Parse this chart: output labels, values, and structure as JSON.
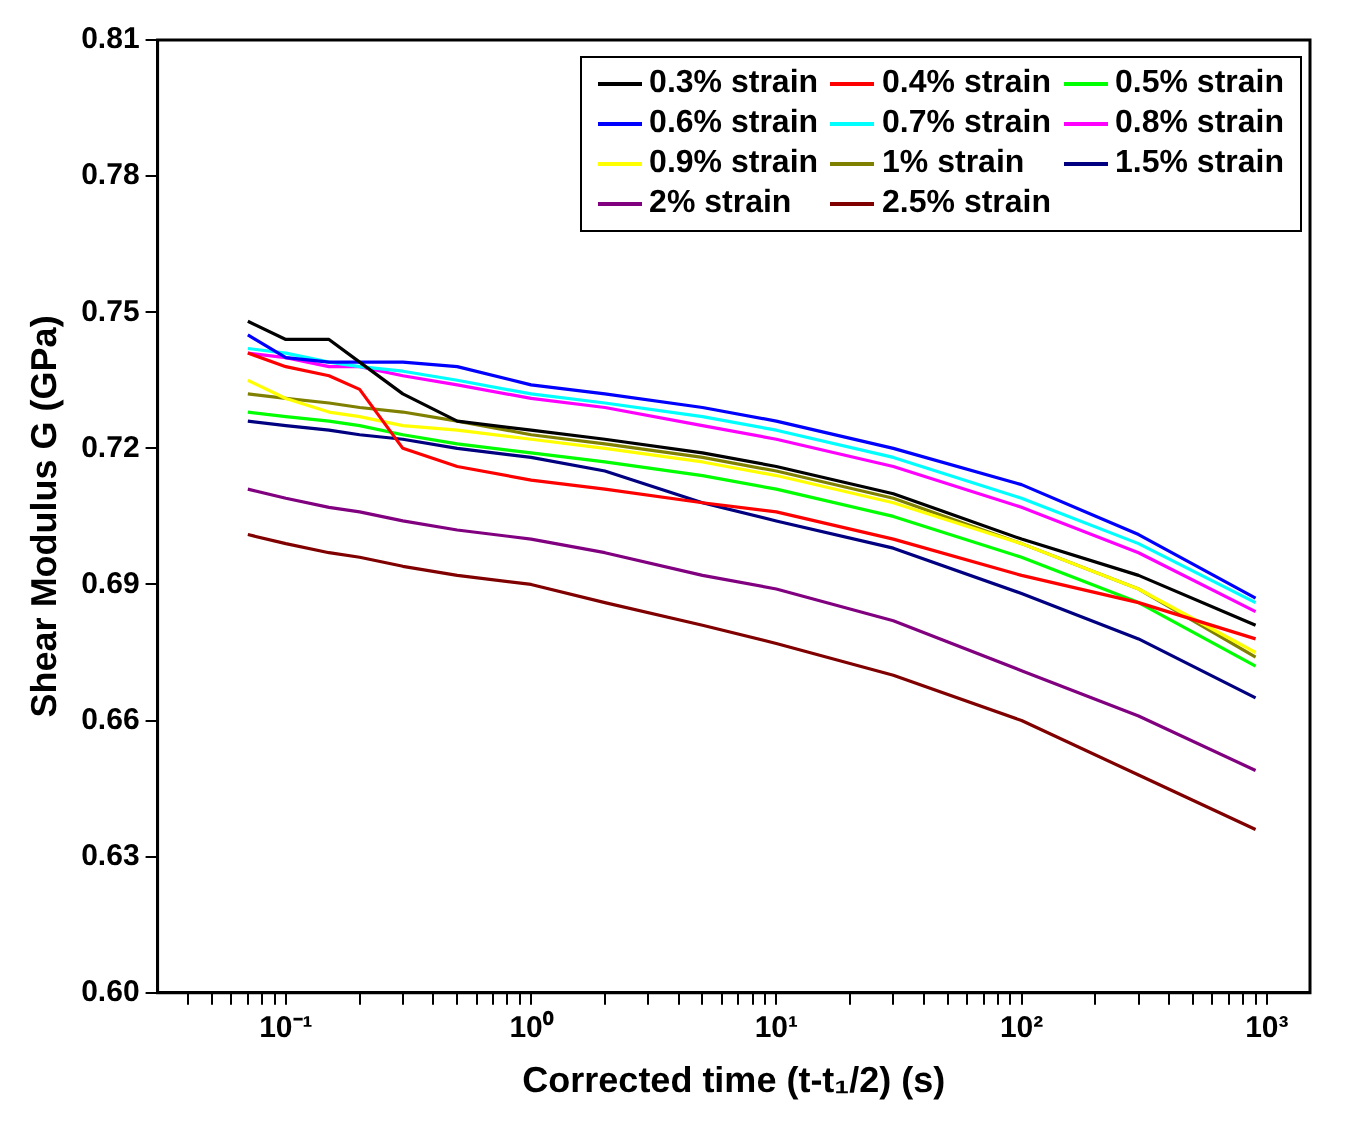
{
  "chart_data": {
    "type": "line",
    "xlabel": "Corrected time (t-t₁/2) (s)",
    "ylabel": "Shear Modulus G (GPa)",
    "log": "x",
    "grid": false,
    "legend": "top right",
    "marker": "none",
    "line_style": "solid",
    "xlim": [
      0.03,
      1500
    ],
    "xticks": [
      {
        "value": 0.04,
        "label": null
      },
      {
        "value": 0.05,
        "label": null
      },
      {
        "value": 0.06,
        "label": null
      },
      {
        "value": 0.07,
        "label": null
      },
      {
        "value": 0.08,
        "label": null
      },
      {
        "value": 0.09,
        "label": null
      },
      {
        "value": 0.1,
        "label": "10⁻¹"
      },
      {
        "value": 0.2,
        "label": null
      },
      {
        "value": 0.3,
        "label": null
      },
      {
        "value": 0.4,
        "label": null
      },
      {
        "value": 0.5,
        "label": null
      },
      {
        "value": 0.6,
        "label": null
      },
      {
        "value": 0.7,
        "label": null
      },
      {
        "value": 0.8,
        "label": null
      },
      {
        "value": 0.9,
        "label": null
      },
      {
        "value": 1,
        "label": "10⁰"
      },
      {
        "value": 2,
        "label": null
      },
      {
        "value": 3,
        "label": null
      },
      {
        "value": 4,
        "label": null
      },
      {
        "value": 5,
        "label": null
      },
      {
        "value": 6,
        "label": null
      },
      {
        "value": 7,
        "label": null
      },
      {
        "value": 8,
        "label": null
      },
      {
        "value": 9,
        "label": null
      },
      {
        "value": 10,
        "label": "10¹"
      },
      {
        "value": 20,
        "label": null
      },
      {
        "value": 30,
        "label": null
      },
      {
        "value": 40,
        "label": null
      },
      {
        "value": 50,
        "label": null
      },
      {
        "value": 60,
        "label": null
      },
      {
        "value": 70,
        "label": null
      },
      {
        "value": 80,
        "label": null
      },
      {
        "value": 90,
        "label": null
      },
      {
        "value": 100,
        "label": "10²"
      },
      {
        "value": 200,
        "label": null
      },
      {
        "value": 300,
        "label": null
      },
      {
        "value": 400,
        "label": null
      },
      {
        "value": 500,
        "label": null
      },
      {
        "value": 600,
        "label": null
      },
      {
        "value": 700,
        "label": null
      },
      {
        "value": 800,
        "label": null
      },
      {
        "value": 900,
        "label": null
      },
      {
        "value": 1000,
        "label": "10³"
      }
    ],
    "ylim": [
      0.6,
      0.81
    ],
    "yticks": [
      {
        "value": 0.6,
        "label": "0.60"
      },
      0.63,
      0.66,
      0.69,
      0.72,
      0.75,
      0.78,
      0.81
    ],
    "x": [
      0.07,
      0.1,
      0.15,
      0.2,
      0.3,
      0.5,
      1,
      2,
      5,
      10,
      30,
      100,
      300,
      900
    ],
    "series": [
      {
        "name": "0.3% strain",
        "color": "#000000",
        "values": [
          0.748,
          0.744,
          0.744,
          0.739,
          0.732,
          0.726,
          0.724,
          0.722,
          0.719,
          0.716,
          0.71,
          0.7,
          0.692,
          0.681
        ]
      },
      {
        "name": "0.4% strain",
        "color": "#ff0000",
        "values": [
          0.741,
          0.738,
          0.736,
          0.733,
          0.72,
          0.716,
          0.713,
          0.711,
          0.708,
          0.706,
          0.7,
          0.692,
          0.686,
          0.678
        ]
      },
      {
        "name": "0.5% strain",
        "color": "#00ff00",
        "values": [
          0.728,
          0.727,
          0.726,
          0.725,
          0.723,
          0.721,
          0.719,
          0.717,
          0.714,
          0.711,
          0.705,
          0.696,
          0.686,
          0.672
        ]
      },
      {
        "name": "0.6% strain",
        "color": "#0000ff",
        "values": [
          0.745,
          0.74,
          0.739,
          0.739,
          0.739,
          0.738,
          0.734,
          0.732,
          0.729,
          0.726,
          0.72,
          0.712,
          0.701,
          0.687
        ]
      },
      {
        "name": "0.7% strain",
        "color": "#00ffff",
        "values": [
          0.742,
          0.741,
          0.739,
          0.738,
          0.737,
          0.735,
          0.732,
          0.73,
          0.727,
          0.724,
          0.718,
          0.709,
          0.699,
          0.686
        ]
      },
      {
        "name": "0.8% strain",
        "color": "#ff00ff",
        "values": [
          0.741,
          0.74,
          0.738,
          0.738,
          0.736,
          0.734,
          0.731,
          0.729,
          0.725,
          0.722,
          0.716,
          0.707,
          0.697,
          0.684
        ]
      },
      {
        "name": "0.9% strain",
        "color": "#ffff00",
        "values": [
          0.735,
          0.731,
          0.728,
          0.727,
          0.725,
          0.724,
          0.722,
          0.72,
          0.717,
          0.714,
          0.708,
          0.699,
          0.689,
          0.675
        ]
      },
      {
        "name": "1% strain",
        "color": "#808000",
        "values": [
          0.732,
          0.731,
          0.73,
          0.729,
          0.728,
          0.726,
          0.723,
          0.721,
          0.718,
          0.715,
          0.709,
          0.699,
          0.689,
          0.674
        ]
      },
      {
        "name": "1.5% strain",
        "color": "#000080",
        "values": [
          0.726,
          0.725,
          0.724,
          0.723,
          0.722,
          0.72,
          0.718,
          0.715,
          0.708,
          0.704,
          0.698,
          0.688,
          0.678,
          0.665
        ]
      },
      {
        "name": "2% strain",
        "color": "#800080",
        "values": [
          0.711,
          0.709,
          0.707,
          0.706,
          0.704,
          0.702,
          0.7,
          0.697,
          0.692,
          0.689,
          0.682,
          0.671,
          0.661,
          0.649
        ]
      },
      {
        "name": "2.5% strain",
        "color": "#800000",
        "values": [
          0.701,
          0.699,
          0.697,
          0.696,
          0.694,
          0.692,
          0.69,
          0.686,
          0.681,
          0.677,
          0.67,
          0.66,
          0.648,
          0.636
        ]
      }
    ]
  }
}
